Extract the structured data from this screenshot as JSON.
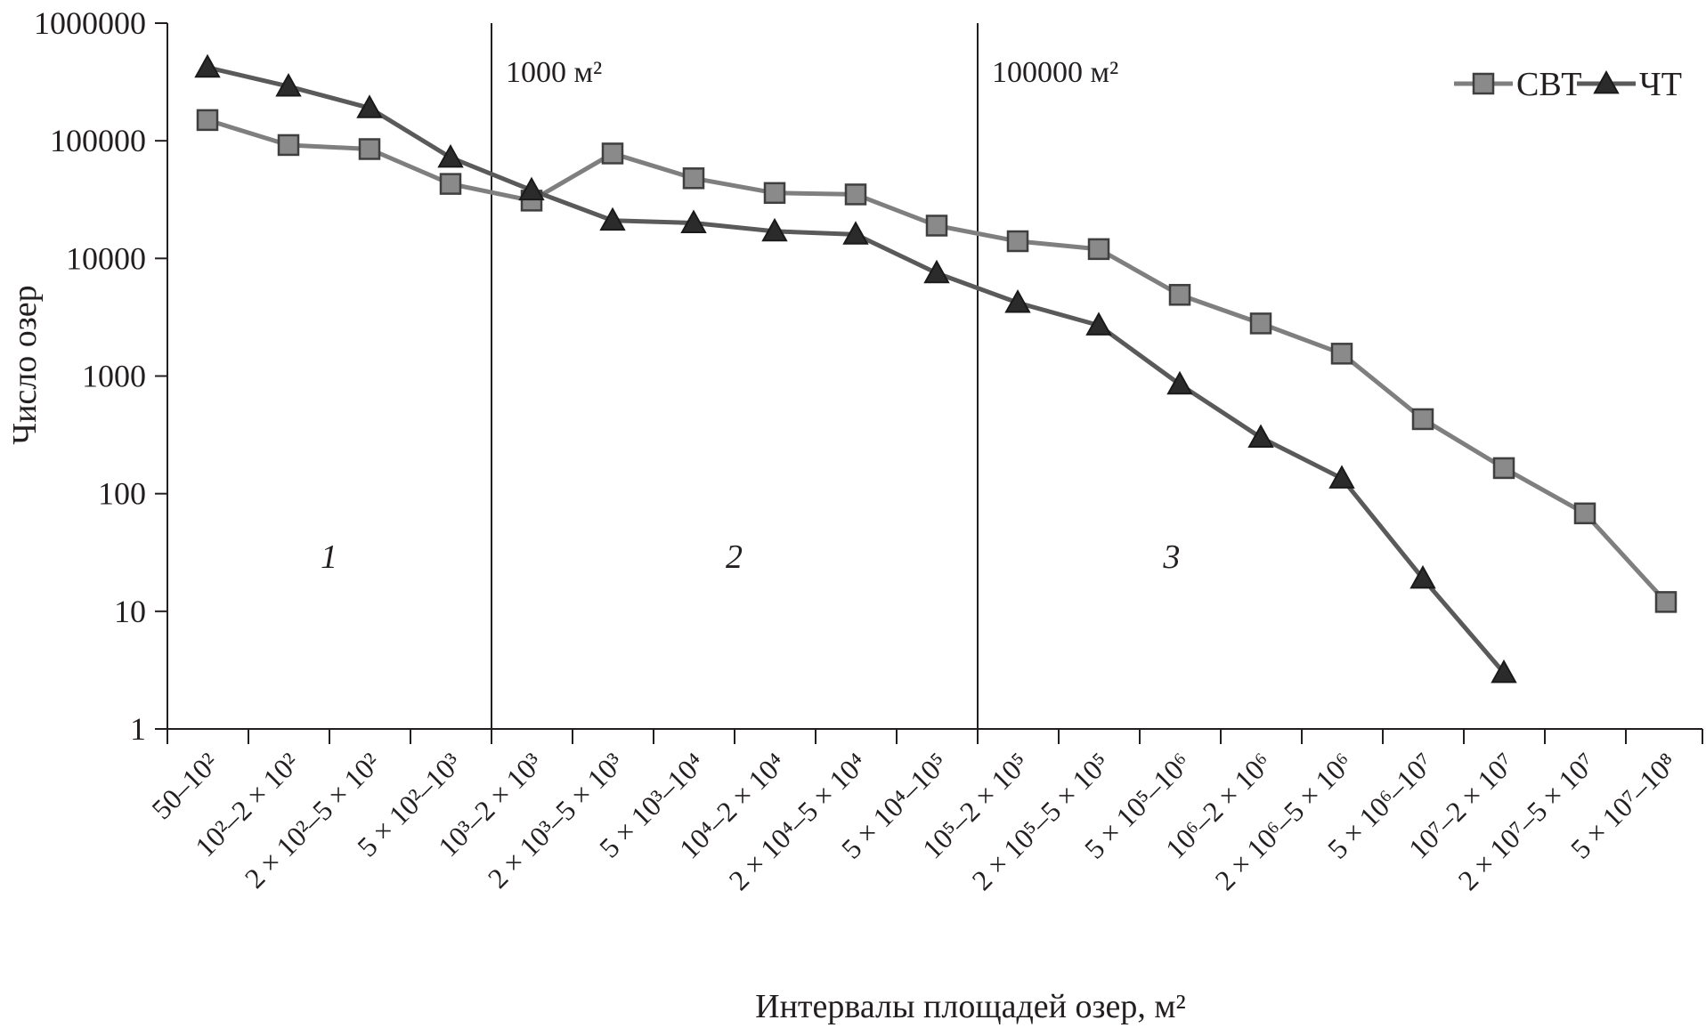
{
  "chart_data": {
    "type": "line",
    "xlabel": "Интервалы площадей озер, м²",
    "ylabel": "Число озер",
    "yscale": "log",
    "ylim": [
      1,
      1000000
    ],
    "y_ticks": [
      "1",
      "10",
      "100",
      "1000",
      "10000",
      "100000",
      "1000000"
    ],
    "grid": false,
    "legend_position": "top-right",
    "categories": [
      "50–10²",
      "10²–2 × 10²",
      "2 × 10²–5 × 10²",
      "5 × 10²–10³",
      "10³–2 × 10³",
      "2 × 10³–5 × 10³",
      "5 × 10³–10⁴",
      "10⁴–2 × 10⁴",
      "2 × 10⁴–5 × 10⁴",
      "5 × 10⁴–10⁵",
      "10⁵–2 × 10⁵",
      "2 × 10⁵–5 × 10⁵",
      "5 × 10⁵–10⁶",
      "10⁶–2 × 10⁶",
      "2 × 10⁶–5 × 10⁶",
      "5 × 10⁶–10⁷",
      "10⁷–2 × 10⁷",
      "2 × 10⁷–5 × 10⁷",
      "5 × 10⁷–10⁸"
    ],
    "series": [
      {
        "name": "СВТ",
        "marker": "square",
        "color": "#7f7f7f",
        "values": [
          150000,
          92000,
          85000,
          43000,
          31000,
          78000,
          48000,
          36000,
          35000,
          19000,
          14000,
          12000,
          4900,
          2800,
          1550,
          430,
          165,
          68,
          12
        ]
      },
      {
        "name": "ЧТ",
        "marker": "triangle",
        "color": "#5a5a5a",
        "values": [
          420000,
          290000,
          190000,
          72000,
          38000,
          21000,
          20000,
          17000,
          16000,
          7500,
          4200,
          2700,
          850,
          300,
          135,
          19,
          3,
          null,
          null
        ]
      }
    ],
    "dividers": [
      {
        "after_category_index": 3,
        "label": "1000 м²"
      },
      {
        "after_category_index": 9,
        "label": "100000 м²"
      }
    ],
    "regions": [
      {
        "label": "1",
        "center_category_index": 1.5
      },
      {
        "label": "2",
        "center_category_index": 6.5
      },
      {
        "label": "3",
        "center_category_index": 11.9
      }
    ]
  }
}
